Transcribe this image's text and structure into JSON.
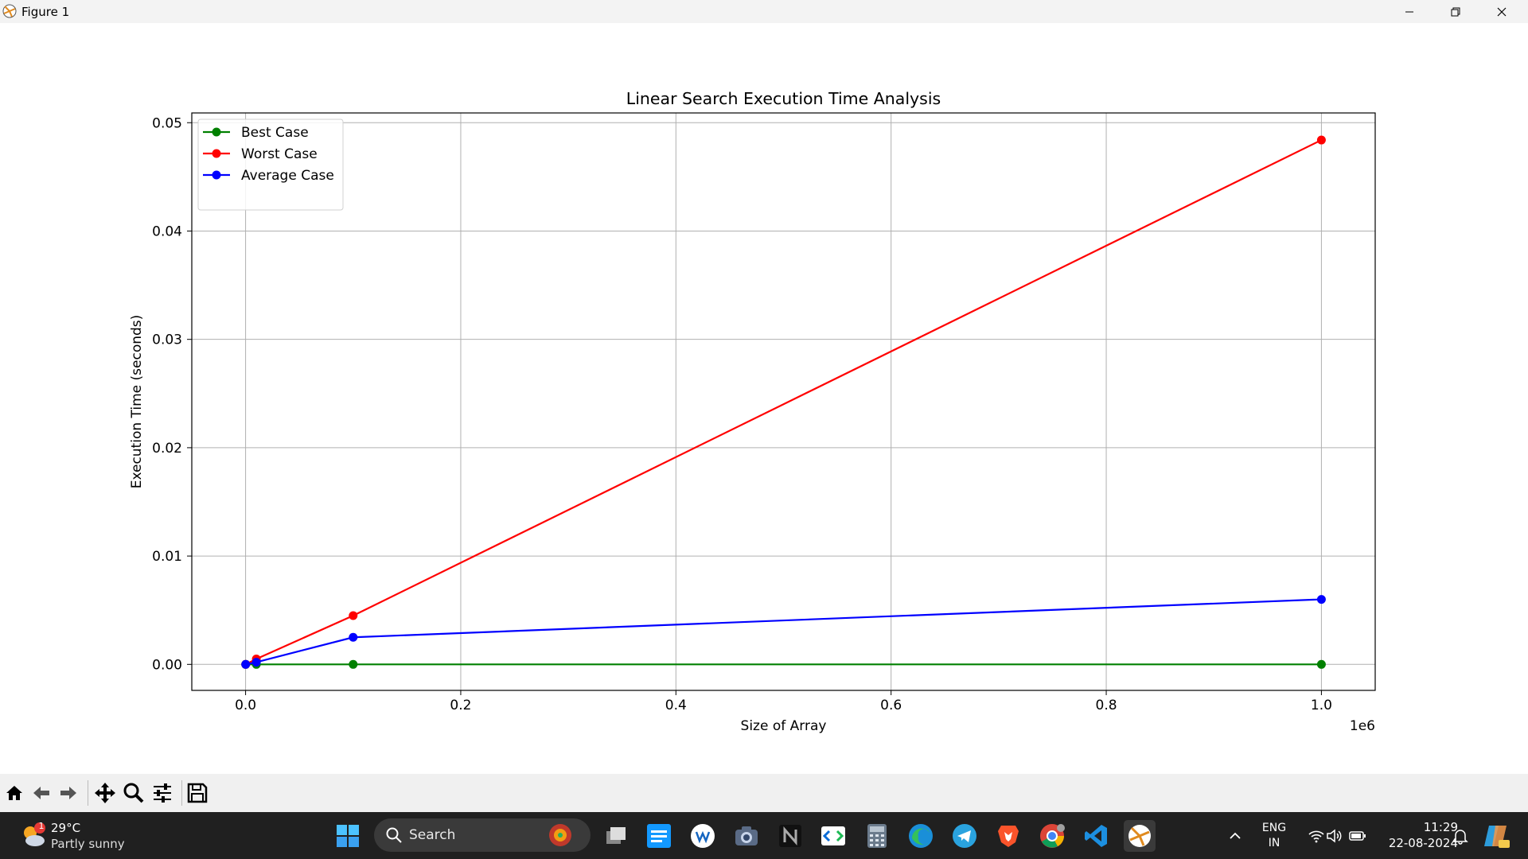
{
  "window": {
    "title": "Figure 1"
  },
  "chart_data": {
    "type": "line",
    "title": "Linear Search Execution Time Analysis",
    "xlabel": "Size of Array",
    "ylabel": "Execution Time (seconds)",
    "x_offset_text": "1e6",
    "x": [
      100,
      10000,
      100000,
      1000000
    ],
    "xlim": [
      -50000,
      1050000
    ],
    "ylim": [
      -0.0024,
      0.0509
    ],
    "x_ticks": [
      0.0,
      0.2,
      0.4,
      0.6,
      0.8,
      1.0
    ],
    "x_tick_labels": [
      "0.0",
      "0.2",
      "0.4",
      "0.6",
      "0.8",
      "1.0"
    ],
    "y_ticks": [
      0.0,
      0.01,
      0.02,
      0.03,
      0.04,
      0.05
    ],
    "y_tick_labels": [
      "0.00",
      "0.01",
      "0.02",
      "0.03",
      "0.04",
      "0.05"
    ],
    "grid": true,
    "legend_position": "upper-left",
    "series": [
      {
        "name": "Best Case",
        "color": "#008000",
        "values": [
          0.0,
          0.0,
          0.0,
          0.0
        ]
      },
      {
        "name": "Worst Case",
        "color": "#ff0000",
        "values": [
          0.0,
          0.0005,
          0.0045,
          0.0484
        ]
      },
      {
        "name": "Average Case",
        "color": "#0000ff",
        "values": [
          0.0,
          0.0002,
          0.0025,
          0.006
        ]
      }
    ]
  },
  "taskbar": {
    "weather_temp": "29°C",
    "weather_condition": "Partly sunny",
    "weather_badge": "1",
    "search_label": "Search",
    "language": "ENG",
    "region": "IN",
    "time": "11:29",
    "date": "22-08-2024"
  }
}
